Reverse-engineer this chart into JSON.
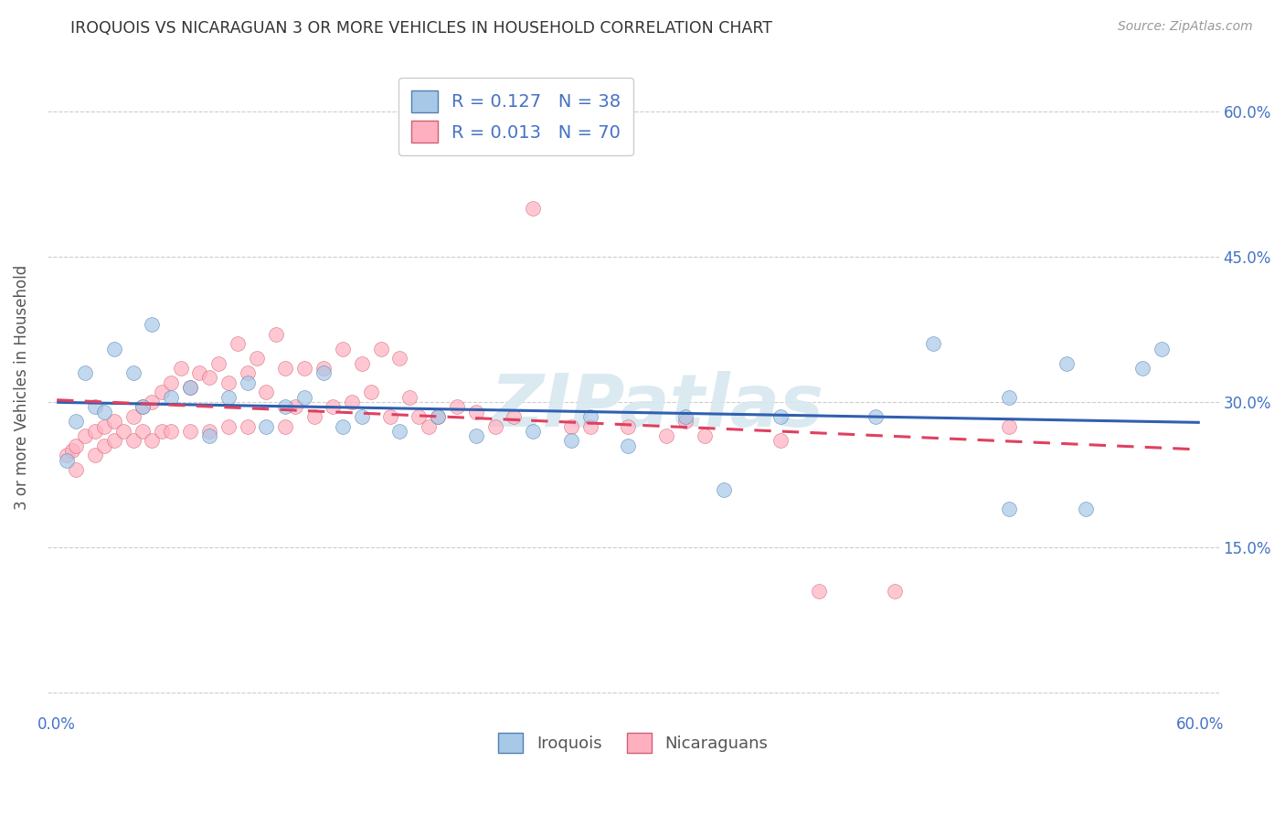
{
  "title": "IROQUOIS VS NICARAGUAN 3 OR MORE VEHICLES IN HOUSEHOLD CORRELATION CHART",
  "source": "Source: ZipAtlas.com",
  "ylabel": "3 or more Vehicles in Household",
  "xlim": [
    -0.005,
    0.61
  ],
  "ylim": [
    -0.02,
    0.65
  ],
  "yticks": [
    0.0,
    0.15,
    0.3,
    0.45,
    0.6
  ],
  "ytick_labels_right": [
    "",
    "15.0%",
    "30.0%",
    "45.0%",
    "60.0%"
  ],
  "xtick_labels": [
    "0.0%",
    "",
    "",
    "",
    "",
    "",
    "60.0%"
  ],
  "watermark_text": "ZIPatlas",
  "iroquois_color": "#a8c8e8",
  "nicaraguan_color": "#ffb0c0",
  "trend_iroquois_color": "#3060b0",
  "trend_nicaraguan_color": "#e04060",
  "iroquois_x": [
    0.005,
    0.01,
    0.015,
    0.02,
    0.025,
    0.03,
    0.04,
    0.045,
    0.05,
    0.06,
    0.07,
    0.08,
    0.09,
    0.1,
    0.11,
    0.12,
    0.13,
    0.14,
    0.15,
    0.16,
    0.18,
    0.2,
    0.22,
    0.25,
    0.27,
    0.28,
    0.3,
    0.33,
    0.35,
    0.38,
    0.43,
    0.46,
    0.5,
    0.5,
    0.53,
    0.54,
    0.57,
    0.58
  ],
  "iroquois_y": [
    0.24,
    0.28,
    0.33,
    0.295,
    0.29,
    0.355,
    0.33,
    0.295,
    0.38,
    0.305,
    0.315,
    0.265,
    0.305,
    0.32,
    0.275,
    0.295,
    0.305,
    0.33,
    0.275,
    0.285,
    0.27,
    0.285,
    0.265,
    0.27,
    0.26,
    0.285,
    0.255,
    0.285,
    0.21,
    0.285,
    0.285,
    0.36,
    0.305,
    0.19,
    0.34,
    0.19,
    0.335,
    0.355
  ],
  "nicaraguan_x": [
    0.005,
    0.008,
    0.01,
    0.01,
    0.015,
    0.02,
    0.02,
    0.025,
    0.025,
    0.03,
    0.03,
    0.035,
    0.04,
    0.04,
    0.045,
    0.045,
    0.05,
    0.05,
    0.055,
    0.055,
    0.06,
    0.06,
    0.065,
    0.07,
    0.07,
    0.075,
    0.08,
    0.08,
    0.085,
    0.09,
    0.09,
    0.095,
    0.1,
    0.1,
    0.105,
    0.11,
    0.115,
    0.12,
    0.12,
    0.125,
    0.13,
    0.135,
    0.14,
    0.145,
    0.15,
    0.155,
    0.16,
    0.165,
    0.17,
    0.175,
    0.18,
    0.185,
    0.19,
    0.195,
    0.2,
    0.21,
    0.22,
    0.23,
    0.24,
    0.25,
    0.27,
    0.28,
    0.3,
    0.32,
    0.33,
    0.34,
    0.38,
    0.4,
    0.44,
    0.5
  ],
  "nicaraguan_y": [
    0.245,
    0.25,
    0.255,
    0.23,
    0.265,
    0.27,
    0.245,
    0.275,
    0.255,
    0.28,
    0.26,
    0.27,
    0.285,
    0.26,
    0.295,
    0.27,
    0.3,
    0.26,
    0.31,
    0.27,
    0.32,
    0.27,
    0.335,
    0.315,
    0.27,
    0.33,
    0.325,
    0.27,
    0.34,
    0.32,
    0.275,
    0.36,
    0.33,
    0.275,
    0.345,
    0.31,
    0.37,
    0.335,
    0.275,
    0.295,
    0.335,
    0.285,
    0.335,
    0.295,
    0.355,
    0.3,
    0.34,
    0.31,
    0.355,
    0.285,
    0.345,
    0.305,
    0.285,
    0.275,
    0.285,
    0.295,
    0.29,
    0.275,
    0.285,
    0.5,
    0.275,
    0.275,
    0.275,
    0.265,
    0.28,
    0.265,
    0.26,
    0.105,
    0.105,
    0.275
  ]
}
